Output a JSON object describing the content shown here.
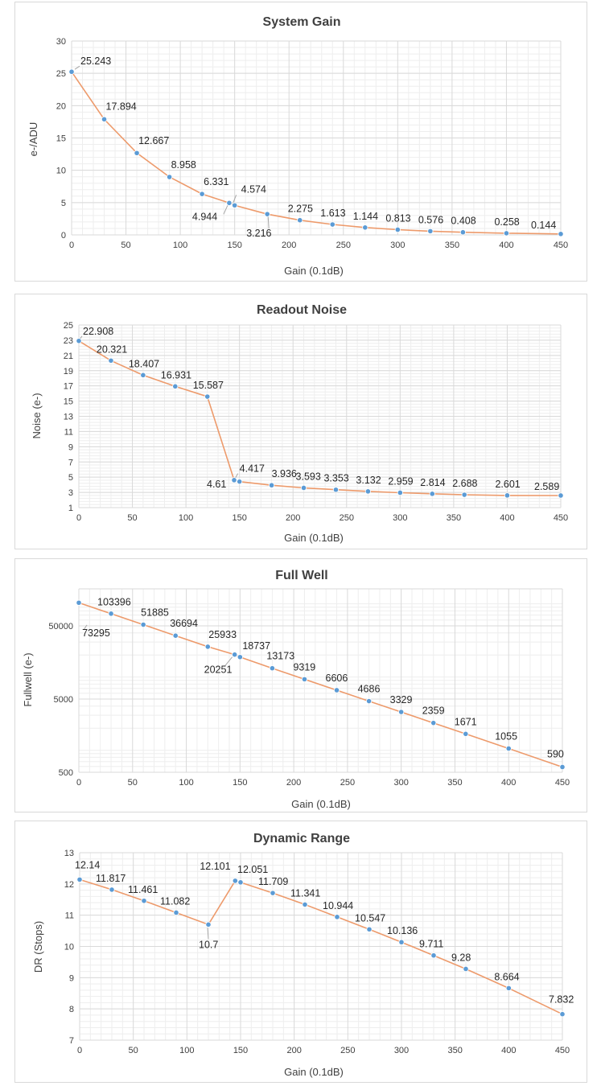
{
  "chart_data": [
    {
      "type": "line",
      "title": "System Gain",
      "xlabel": "Gain (0.1dB)",
      "ylabel": "e-/ADU",
      "xlim": [
        0,
        450
      ],
      "ylim": [
        0,
        30
      ],
      "x_ticks": [
        0,
        50,
        100,
        150,
        200,
        250,
        300,
        350,
        400,
        450
      ],
      "y_ticks": [
        0,
        5,
        10,
        15,
        20,
        25,
        30
      ],
      "grid": true,
      "series": [
        {
          "x": [
            0,
            30,
            60,
            90,
            120,
            145,
            150,
            180,
            210,
            240,
            270,
            300,
            330,
            360,
            400,
            450
          ],
          "y": [
            25.243,
            17.894,
            12.667,
            8.958,
            6.331,
            4.944,
            4.574,
            3.216,
            2.275,
            1.613,
            1.144,
            0.813,
            0.576,
            0.408,
            0.258,
            0.144
          ],
          "labels": [
            "25.243",
            "17.894",
            "12.667",
            "8.958",
            "6.331",
            "4.944",
            "4.574",
            "3.216",
            "2.275",
            "1.613",
            "1.144",
            "0.813",
            "0.576",
            "0.408",
            "0.258",
            "0.144"
          ]
        }
      ]
    },
    {
      "type": "line",
      "title": "Readout Noise",
      "xlabel": "Gain (0.1dB)",
      "ylabel": "Noise (e-)",
      "xlim": [
        0,
        450
      ],
      "ylim": [
        1,
        25
      ],
      "x_ticks": [
        0,
        50,
        100,
        150,
        200,
        250,
        300,
        350,
        400,
        450
      ],
      "y_ticks": [
        1,
        3,
        5,
        7,
        9,
        11,
        13,
        15,
        17,
        19,
        21,
        23,
        25
      ],
      "grid": true,
      "series": [
        {
          "x": [
            0,
            30,
            60,
            90,
            120,
            145,
            150,
            180,
            210,
            240,
            270,
            300,
            330,
            360,
            400,
            450
          ],
          "y": [
            22.908,
            20.321,
            18.407,
            16.931,
            15.587,
            4.61,
            4.417,
            3.936,
            3.593,
            3.353,
            3.132,
            2.959,
            2.814,
            2.688,
            2.601,
            2.589
          ],
          "labels": [
            "22.908",
            "20.321",
            "18.407",
            "16.931",
            "15.587",
            "4.61",
            "4.417",
            "3.936",
            "3.593",
            "3.353",
            "3.132",
            "2.959",
            "2.814",
            "2.688",
            "2.601",
            "2.589"
          ]
        }
      ]
    },
    {
      "type": "line",
      "title": "Full Well",
      "xlabel": "Gain (0.1dB)",
      "ylabel": "Fullwell (e-)",
      "xlim": [
        0,
        450
      ],
      "ylim": [
        500,
        160000
      ],
      "y_scale": "log",
      "x_ticks": [
        0,
        50,
        100,
        150,
        200,
        250,
        300,
        350,
        400,
        450
      ],
      "y_ticks": [
        500,
        5000,
        50000
      ],
      "grid": true,
      "series": [
        {
          "x": [
            0,
            30,
            60,
            90,
            120,
            145,
            150,
            180,
            210,
            240,
            270,
            300,
            330,
            360,
            400,
            450
          ],
          "y": [
            103396,
            73295,
            51885,
            36694,
            25933,
            20251,
            18737,
            13173,
            9319,
            6606,
            4686,
            3329,
            2359,
            1671,
            1055,
            590
          ],
          "labels": [
            "103396",
            "73295",
            "51885",
            "36694",
            "25933",
            "20251",
            "18737",
            "13173",
            "9319",
            "6606",
            "4686",
            "3329",
            "2359",
            "1671",
            "1055",
            "590"
          ]
        }
      ]
    },
    {
      "type": "line",
      "title": "Dynamic Range",
      "xlabel": "Gain (0.1dB)",
      "ylabel": "DR (Stops)",
      "xlim": [
        0,
        450
      ],
      "ylim": [
        7,
        13
      ],
      "x_ticks": [
        0,
        50,
        100,
        150,
        200,
        250,
        300,
        350,
        400,
        450
      ],
      "y_ticks": [
        7,
        8,
        9,
        10,
        11,
        12,
        13
      ],
      "grid": true,
      "series": [
        {
          "x": [
            0,
            30,
            60,
            90,
            120,
            145,
            150,
            180,
            210,
            240,
            270,
            300,
            330,
            360,
            400,
            450
          ],
          "y": [
            12.14,
            11.817,
            11.461,
            11.082,
            10.7,
            12.101,
            12.051,
            11.709,
            11.341,
            10.944,
            10.547,
            10.136,
            9.711,
            9.28,
            8.664,
            7.832
          ],
          "labels": [
            "12.14",
            "11.817",
            "11.461",
            "11.082",
            "10.7",
            "12.101",
            "12.051",
            "11.709",
            "11.341",
            "10.944",
            "10.547",
            "10.136",
            "9.711",
            "9.28",
            "8.664",
            "7.832"
          ]
        }
      ]
    }
  ],
  "colors": {
    "line": "#ed9a6b",
    "marker": "#5b9bd5",
    "major_grid": "#d9d9d9",
    "minor_grid": "#eeeeee",
    "text": "#404040"
  }
}
